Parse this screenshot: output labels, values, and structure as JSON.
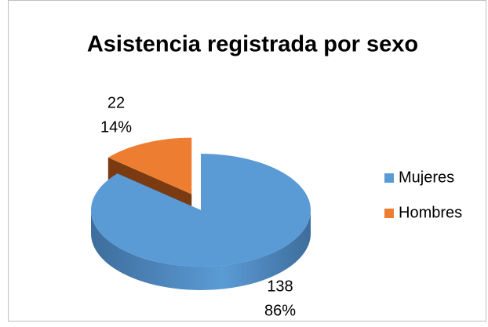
{
  "chart_data": {
    "type": "pie",
    "title": "Asistencia registrada por sexo",
    "categories": [
      "Mujeres",
      "Hombres"
    ],
    "values": [
      138,
      22
    ],
    "percent_labels": [
      "86%",
      "14%"
    ],
    "colors": [
      "#5b9bd5",
      "#ed7d31"
    ],
    "side_colors": [
      "#3d6d9c",
      "#7a3b12"
    ],
    "legend": "right",
    "exploded": [
      1
    ]
  }
}
